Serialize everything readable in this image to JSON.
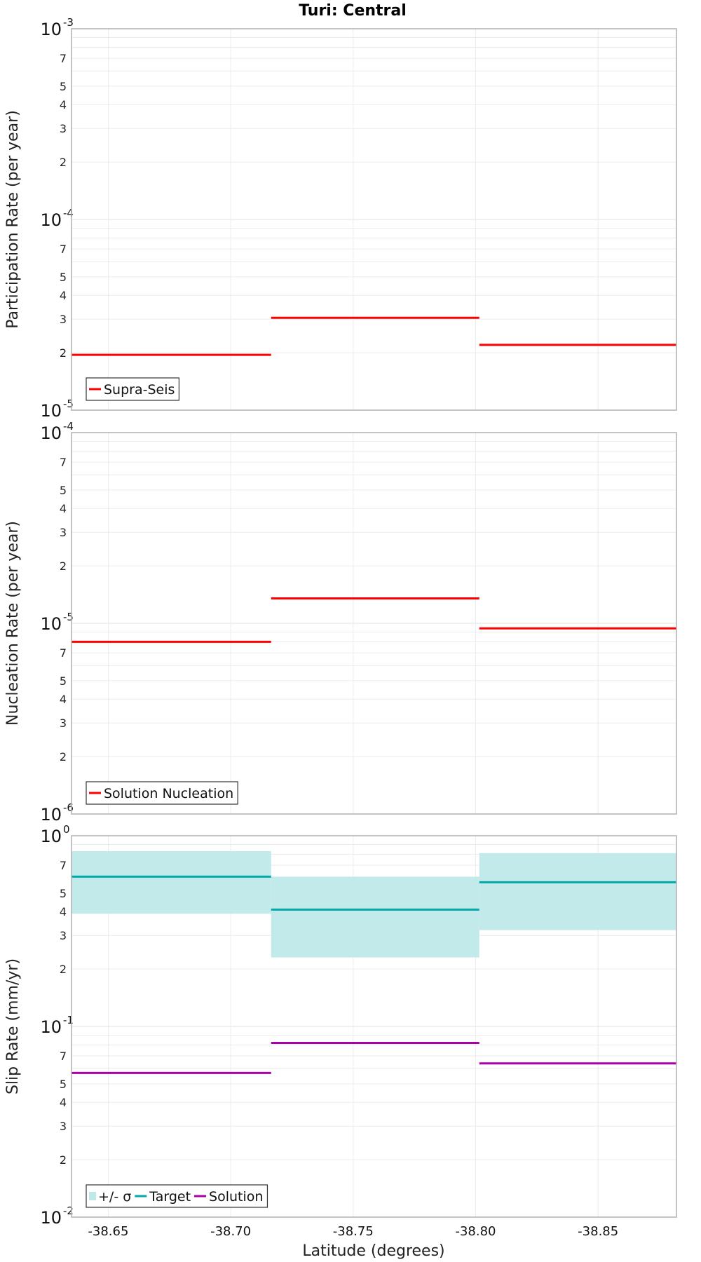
{
  "chart_data": {
    "type": "line",
    "title": "Turi: Central",
    "xlabel": "Latitude (degrees)",
    "xlim": [
      -38.635,
      -38.882
    ],
    "x_ticks": [
      -38.65,
      -38.7,
      -38.75,
      -38.8,
      -38.85
    ],
    "x_tick_labels": [
      "-38.65",
      "-38.70",
      "-38.75",
      "-38.80",
      "-38.85"
    ],
    "x_bins": [
      [
        -38.635,
        -38.7165
      ],
      [
        -38.7165,
        -38.8015
      ],
      [
        -38.8015,
        -38.882
      ]
    ],
    "grid": true,
    "panels": [
      {
        "ylabel": "Participation Rate (per year)",
        "yscale": "log",
        "ylim": [
          1e-05,
          0.001
        ],
        "major_ticks": [
          {
            "value": 0.001,
            "base": "10",
            "exp": "-3"
          },
          {
            "value": 0.0001,
            "base": "10",
            "exp": "-4"
          },
          {
            "value": 1e-05,
            "base": "10",
            "exp": "-5"
          }
        ],
        "legend_position": "bottom-left",
        "series": [
          {
            "name": "Supra-Seis",
            "kind": "step",
            "color": "#ff0000",
            "values": [
              1.95e-05,
              3.05e-05,
              2.2e-05
            ]
          }
        ]
      },
      {
        "ylabel": "Nucleation Rate (per year)",
        "yscale": "log",
        "ylim": [
          1e-06,
          0.0001
        ],
        "major_ticks": [
          {
            "value": 0.0001,
            "base": "10",
            "exp": "-4"
          },
          {
            "value": 1e-05,
            "base": "10",
            "exp": "-5"
          },
          {
            "value": 1e-06,
            "base": "10",
            "exp": "-6"
          }
        ],
        "legend_position": "bottom-left",
        "series": [
          {
            "name": "Solution Nucleation",
            "kind": "step",
            "color": "#ff0000",
            "values": [
              8e-06,
              1.35e-05,
              9.4e-06
            ]
          }
        ]
      },
      {
        "ylabel": "Slip Rate (mm/yr)",
        "yscale": "log",
        "ylim": [
          0.01,
          1.0
        ],
        "major_ticks": [
          {
            "value": 1.0,
            "base": "10",
            "exp": "0"
          },
          {
            "value": 0.1,
            "base": "10",
            "exp": "-1"
          },
          {
            "value": 0.01,
            "base": "10",
            "exp": "-2"
          }
        ],
        "legend_position": "bottom-left",
        "series": [
          {
            "name": "+/- σ",
            "kind": "band",
            "color": "#bfe9e9",
            "lower": [
              0.39,
              0.23,
              0.32
            ],
            "upper": [
              0.83,
              0.61,
              0.81
            ]
          },
          {
            "name": "Target",
            "kind": "step",
            "color": "#00aaaa",
            "values": [
              0.61,
              0.41,
              0.57
            ]
          },
          {
            "name": "Solution",
            "kind": "step",
            "color": "#aa00aa",
            "values": [
              0.057,
              0.082,
              0.064
            ]
          }
        ]
      }
    ]
  }
}
